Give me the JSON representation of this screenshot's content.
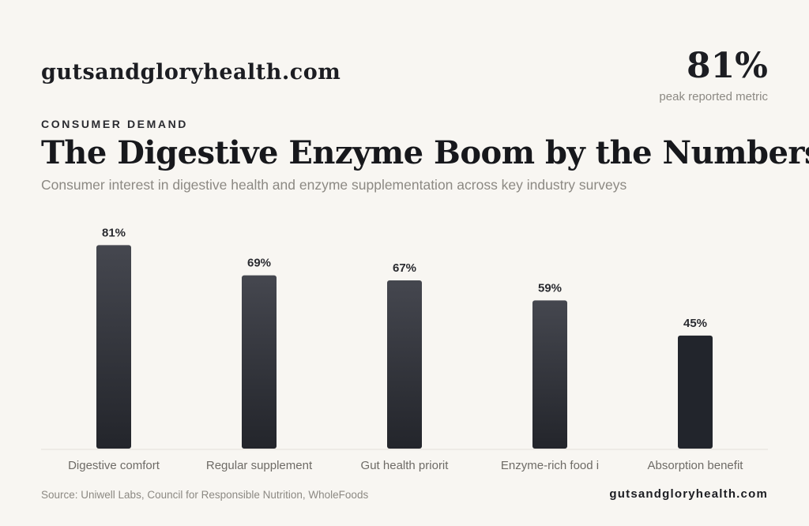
{
  "header": {
    "brand": "gutsandgloryhealth.com",
    "peak_value": "81%",
    "peak_caption": "peak reported metric",
    "eyebrow": "CONSUMER DEMAND",
    "title": "The Digestive Enzyme Boom by the Numbers",
    "subtitle": "Consumer interest in digestive health and enzyme supplementation across key industry surveys"
  },
  "chart_data": {
    "type": "bar",
    "categories": [
      "Digestive comfort",
      "Regular supplement",
      "Gut health priorit",
      "Enzyme-rich food i",
      "Absorption benefit"
    ],
    "values": [
      81,
      69,
      67,
      59,
      45
    ],
    "value_labels": [
      "81%",
      "69%",
      "67%",
      "59%",
      "45%"
    ],
    "ylim": [
      0,
      100
    ],
    "grid": false,
    "colors": {
      "bar_top": "#45474f",
      "bar_bottom": "#23252b",
      "bar_last": "#22252c",
      "baseline": "#e3e0da",
      "label": "#2a2b30",
      "category": "#6e6b66"
    }
  },
  "footer": {
    "source": "Source: Uniwell Labs, Council for Responsible Nutrition, WholeFoods",
    "brand": "gutsandgloryhealth.com"
  }
}
